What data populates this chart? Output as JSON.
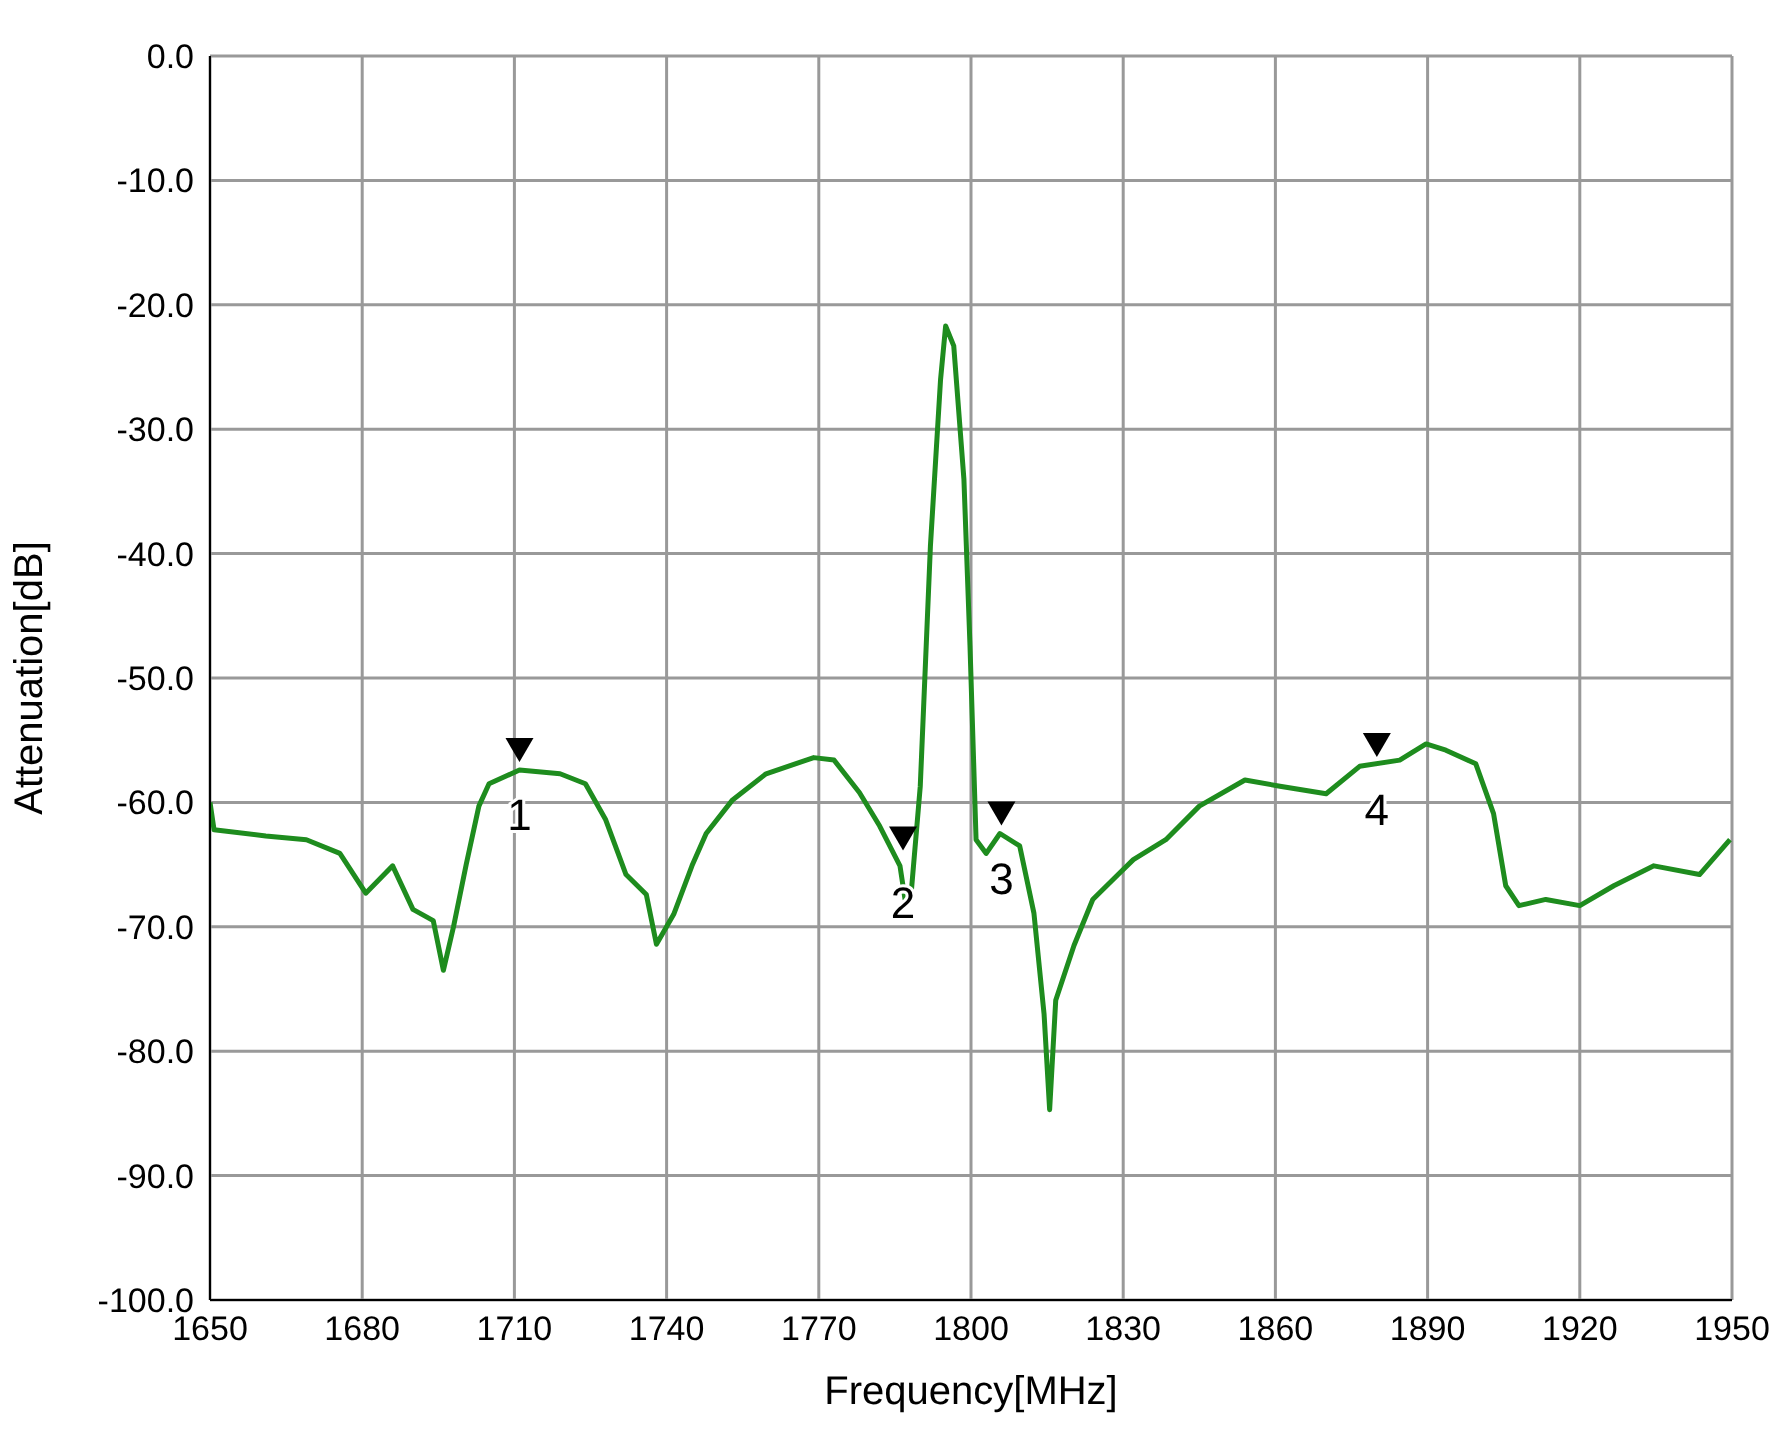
{
  "chart_data": {
    "type": "line",
    "xlabel": "Frequency[MHz]",
    "ylabel": "Attenuation[dB]",
    "xlim": [
      1650,
      1950
    ],
    "xticks": [
      1650,
      1680,
      1710,
      1740,
      1770,
      1800,
      1830,
      1860,
      1890,
      1920,
      1950
    ],
    "ylim": [
      -100,
      0
    ],
    "yticks": [
      {
        "value": 0,
        "label": "0.0"
      },
      {
        "value": -10,
        "label": "-10.0"
      },
      {
        "value": -20,
        "label": "-20.0"
      },
      {
        "value": -30,
        "label": "-30.0"
      },
      {
        "value": -40,
        "label": "-40.0"
      },
      {
        "value": -50,
        "label": "-50.0"
      },
      {
        "value": -60,
        "label": "-60.0"
      },
      {
        "value": -70,
        "label": "-70.0"
      },
      {
        "value": -80,
        "label": "-80.0"
      },
      {
        "value": -90,
        "label": "-90.0"
      },
      {
        "value": -100,
        "label": "-100.0"
      }
    ],
    "grid": true,
    "legend": false,
    "marker": "none",
    "line_style": "solid",
    "series": [
      {
        "color": "#1e8c1e",
        "x": [
          1650,
          1650.8,
          1661,
          1669,
          1675.6,
          1680.7,
          1686,
          1690,
          1694,
          1696,
          1698,
          1700.5,
          1703,
          1705,
          1711,
          1719,
          1724,
          1728,
          1732,
          1736,
          1738,
          1741.4,
          1745,
          1747.8,
          1753,
          1759.6,
          1769,
          1773,
          1778,
          1782,
          1786,
          1787,
          1788.1,
          1790,
          1792,
          1794,
          1795,
          1796.6,
          1798.6,
          1799.8,
          1801,
          1803,
          1805.7,
          1809.6,
          1812.4,
          1814.4,
          1815.5,
          1816.7,
          1820.3,
          1824,
          1829,
          1832,
          1838.4,
          1845,
          1854,
          1860.9,
          1870,
          1876.6,
          1884.5,
          1889.7,
          1893.6,
          1899.5,
          1903,
          1905.4,
          1908,
          1913.3,
          1920,
          1926.7,
          1934.6,
          1943.6,
          1949.6
        ],
        "values": [
          -60,
          -62.2,
          -62.7,
          -63,
          -64.1,
          -67.3,
          -65.1,
          -68.6,
          -69.5,
          -73.5,
          -70,
          -65,
          -60.3,
          -58.5,
          -57.4,
          -57.7,
          -58.5,
          -61.4,
          -65.8,
          -67.4,
          -71.4,
          -69,
          -65.1,
          -62.5,
          -59.8,
          -57.7,
          -56.4,
          -56.6,
          -59.2,
          -61.9,
          -65.1,
          -67.8,
          -67.8,
          -58.7,
          -39.4,
          -26,
          -21.7,
          -23.3,
          -34,
          -47.4,
          -63,
          -64.1,
          -62.5,
          -63.5,
          -68.9,
          -77,
          -84.7,
          -75.9,
          -71.5,
          -67.8,
          -65.8,
          -64.6,
          -63,
          -60.3,
          -58.2,
          -58.7,
          -59.3,
          -57.1,
          -56.6,
          -55.3,
          -55.8,
          -56.9,
          -60.9,
          -66.7,
          -68.3,
          -67.8,
          -68.3,
          -66.7,
          -65.1,
          -65.8,
          -63
        ]
      }
    ],
    "annotations": [
      {
        "text": "1",
        "x": 1711,
        "y": -57.4
      },
      {
        "text": "2",
        "x": 1786.6,
        "y": -64.5
      },
      {
        "text": "3",
        "x": 1806,
        "y": -62.5
      },
      {
        "text": "4",
        "x": 1880,
        "y": -57
      }
    ]
  }
}
